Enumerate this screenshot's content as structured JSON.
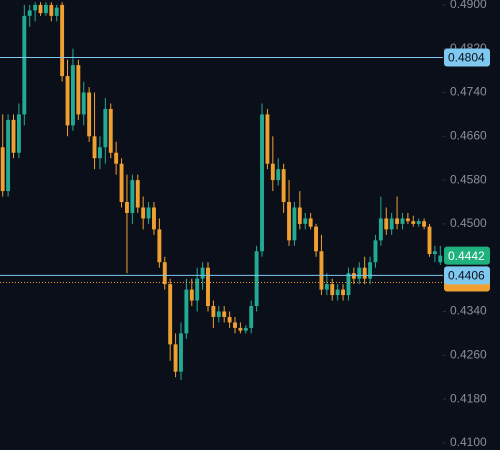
{
  "chart_data": {
    "type": "candlestick",
    "up_color": "#22ab94",
    "down_color": "#f0a030",
    "ylim": [
      0.4087,
      0.4909
    ],
    "yticks": [
      {
        "value": 0.49,
        "label": "0.4900"
      },
      {
        "value": 0.482,
        "label": "0.4820"
      },
      {
        "value": 0.474,
        "label": "0.4740"
      },
      {
        "value": 0.466,
        "label": "0.4660"
      },
      {
        "value": 0.458,
        "label": "0.4580"
      },
      {
        "value": 0.45,
        "label": "0.4500"
      },
      {
        "value": 0.434,
        "label": "0.4340"
      },
      {
        "value": 0.426,
        "label": "0.4260"
      },
      {
        "value": 0.418,
        "label": "0.4180"
      },
      {
        "value": 0.41,
        "label": "0.4100"
      }
    ],
    "price_lines": [
      {
        "value": 0.4804,
        "label": "0.4804",
        "color": "#7fc8f0"
      },
      {
        "value": 0.4406,
        "label": "0.4406",
        "color": "#7fc8f0"
      }
    ],
    "last_price": {
      "value": 0.4442,
      "label": "0.4442",
      "color": "#1fb27e"
    },
    "prev_close": {
      "value": 0.4393,
      "color": "#f0a030"
    },
    "open": [
      0.464,
      0.456,
      0.469,
      0.463,
      0.47,
      0.488,
      0.489,
      0.49,
      0.4885,
      0.49,
      0.488,
      0.49,
      0.477,
      0.468,
      0.479,
      0.47,
      0.474,
      0.466,
      0.462,
      0.464,
      0.471,
      0.463,
      0.461,
      0.454,
      0.452,
      0.458,
      0.453,
      0.451,
      0.453,
      0.449,
      0.443,
      0.439,
      0.428,
      0.423,
      0.43,
      0.438,
      0.436,
      0.44,
      0.442,
      0.435,
      0.433,
      0.434,
      0.433,
      0.432,
      0.431,
      0.4305,
      0.431,
      0.435,
      0.445,
      0.47,
      0.461,
      0.458,
      0.46,
      0.454,
      0.447,
      0.453,
      0.45,
      0.451,
      0.4495,
      0.445,
      0.438,
      0.439,
      0.437,
      0.438,
      0.437,
      0.441,
      0.44,
      0.442,
      0.44,
      0.443,
      0.447,
      0.451,
      0.449,
      0.451,
      0.45,
      0.451,
      0.4505,
      0.45,
      0.4505,
      0.4495,
      0.4445,
      0.443
    ],
    "high": [
      0.47,
      0.47,
      0.47,
      0.472,
      0.49,
      0.49,
      0.4905,
      0.4905,
      0.4905,
      0.4905,
      0.49,
      0.4905,
      0.48,
      0.482,
      0.48,
      0.476,
      0.475,
      0.474,
      0.466,
      0.473,
      0.472,
      0.465,
      0.462,
      0.459,
      0.459,
      0.459,
      0.455,
      0.454,
      0.454,
      0.451,
      0.444,
      0.44,
      0.43,
      0.432,
      0.44,
      0.44,
      0.442,
      0.443,
      0.443,
      0.436,
      0.435,
      0.435,
      0.434,
      0.433,
      0.432,
      0.4315,
      0.436,
      0.446,
      0.472,
      0.471,
      0.466,
      0.462,
      0.461,
      0.458,
      0.454,
      0.456,
      0.452,
      0.452,
      0.45,
      0.448,
      0.441,
      0.44,
      0.439,
      0.439,
      0.442,
      0.442,
      0.443,
      0.444,
      0.444,
      0.448,
      0.455,
      0.453,
      0.452,
      0.455,
      0.452,
      0.452,
      0.4515,
      0.451,
      0.451,
      0.45,
      0.446,
      0.446
    ],
    "low": [
      0.455,
      0.455,
      0.462,
      0.462,
      0.468,
      0.486,
      0.487,
      0.488,
      0.488,
      0.487,
      0.487,
      0.476,
      0.466,
      0.467,
      0.469,
      0.468,
      0.465,
      0.46,
      0.46,
      0.461,
      0.462,
      0.459,
      0.453,
      0.441,
      0.45,
      0.452,
      0.449,
      0.45,
      0.448,
      0.442,
      0.438,
      0.425,
      0.422,
      0.4215,
      0.429,
      0.435,
      0.434,
      0.438,
      0.434,
      0.431,
      0.432,
      0.432,
      0.431,
      0.43,
      0.43,
      0.43,
      0.43,
      0.434,
      0.444,
      0.46,
      0.456,
      0.457,
      0.452,
      0.446,
      0.446,
      0.449,
      0.449,
      0.449,
      0.444,
      0.437,
      0.437,
      0.436,
      0.436,
      0.436,
      0.436,
      0.439,
      0.439,
      0.439,
      0.439,
      0.442,
      0.446,
      0.448,
      0.448,
      0.449,
      0.449,
      0.45,
      0.4495,
      0.4495,
      0.449,
      0.444,
      0.443,
      0.4425
    ],
    "close": [
      0.456,
      0.469,
      0.463,
      0.47,
      0.488,
      0.489,
      0.49,
      0.4885,
      0.49,
      0.488,
      0.4895,
      0.477,
      0.468,
      0.479,
      0.47,
      0.474,
      0.466,
      0.462,
      0.464,
      0.471,
      0.463,
      0.461,
      0.454,
      0.452,
      0.458,
      0.453,
      0.451,
      0.453,
      0.449,
      0.443,
      0.439,
      0.428,
      0.423,
      0.43,
      0.438,
      0.436,
      0.44,
      0.442,
      0.435,
      0.433,
      0.434,
      0.433,
      0.432,
      0.431,
      0.4305,
      0.431,
      0.435,
      0.445,
      0.47,
      0.461,
      0.458,
      0.46,
      0.454,
      0.447,
      0.453,
      0.45,
      0.451,
      0.4495,
      0.445,
      0.438,
      0.439,
      0.437,
      0.438,
      0.437,
      0.441,
      0.44,
      0.442,
      0.44,
      0.443,
      0.447,
      0.451,
      0.449,
      0.451,
      0.45,
      0.451,
      0.4505,
      0.45,
      0.4505,
      0.4495,
      0.4445,
      0.445,
      0.4442
    ]
  }
}
